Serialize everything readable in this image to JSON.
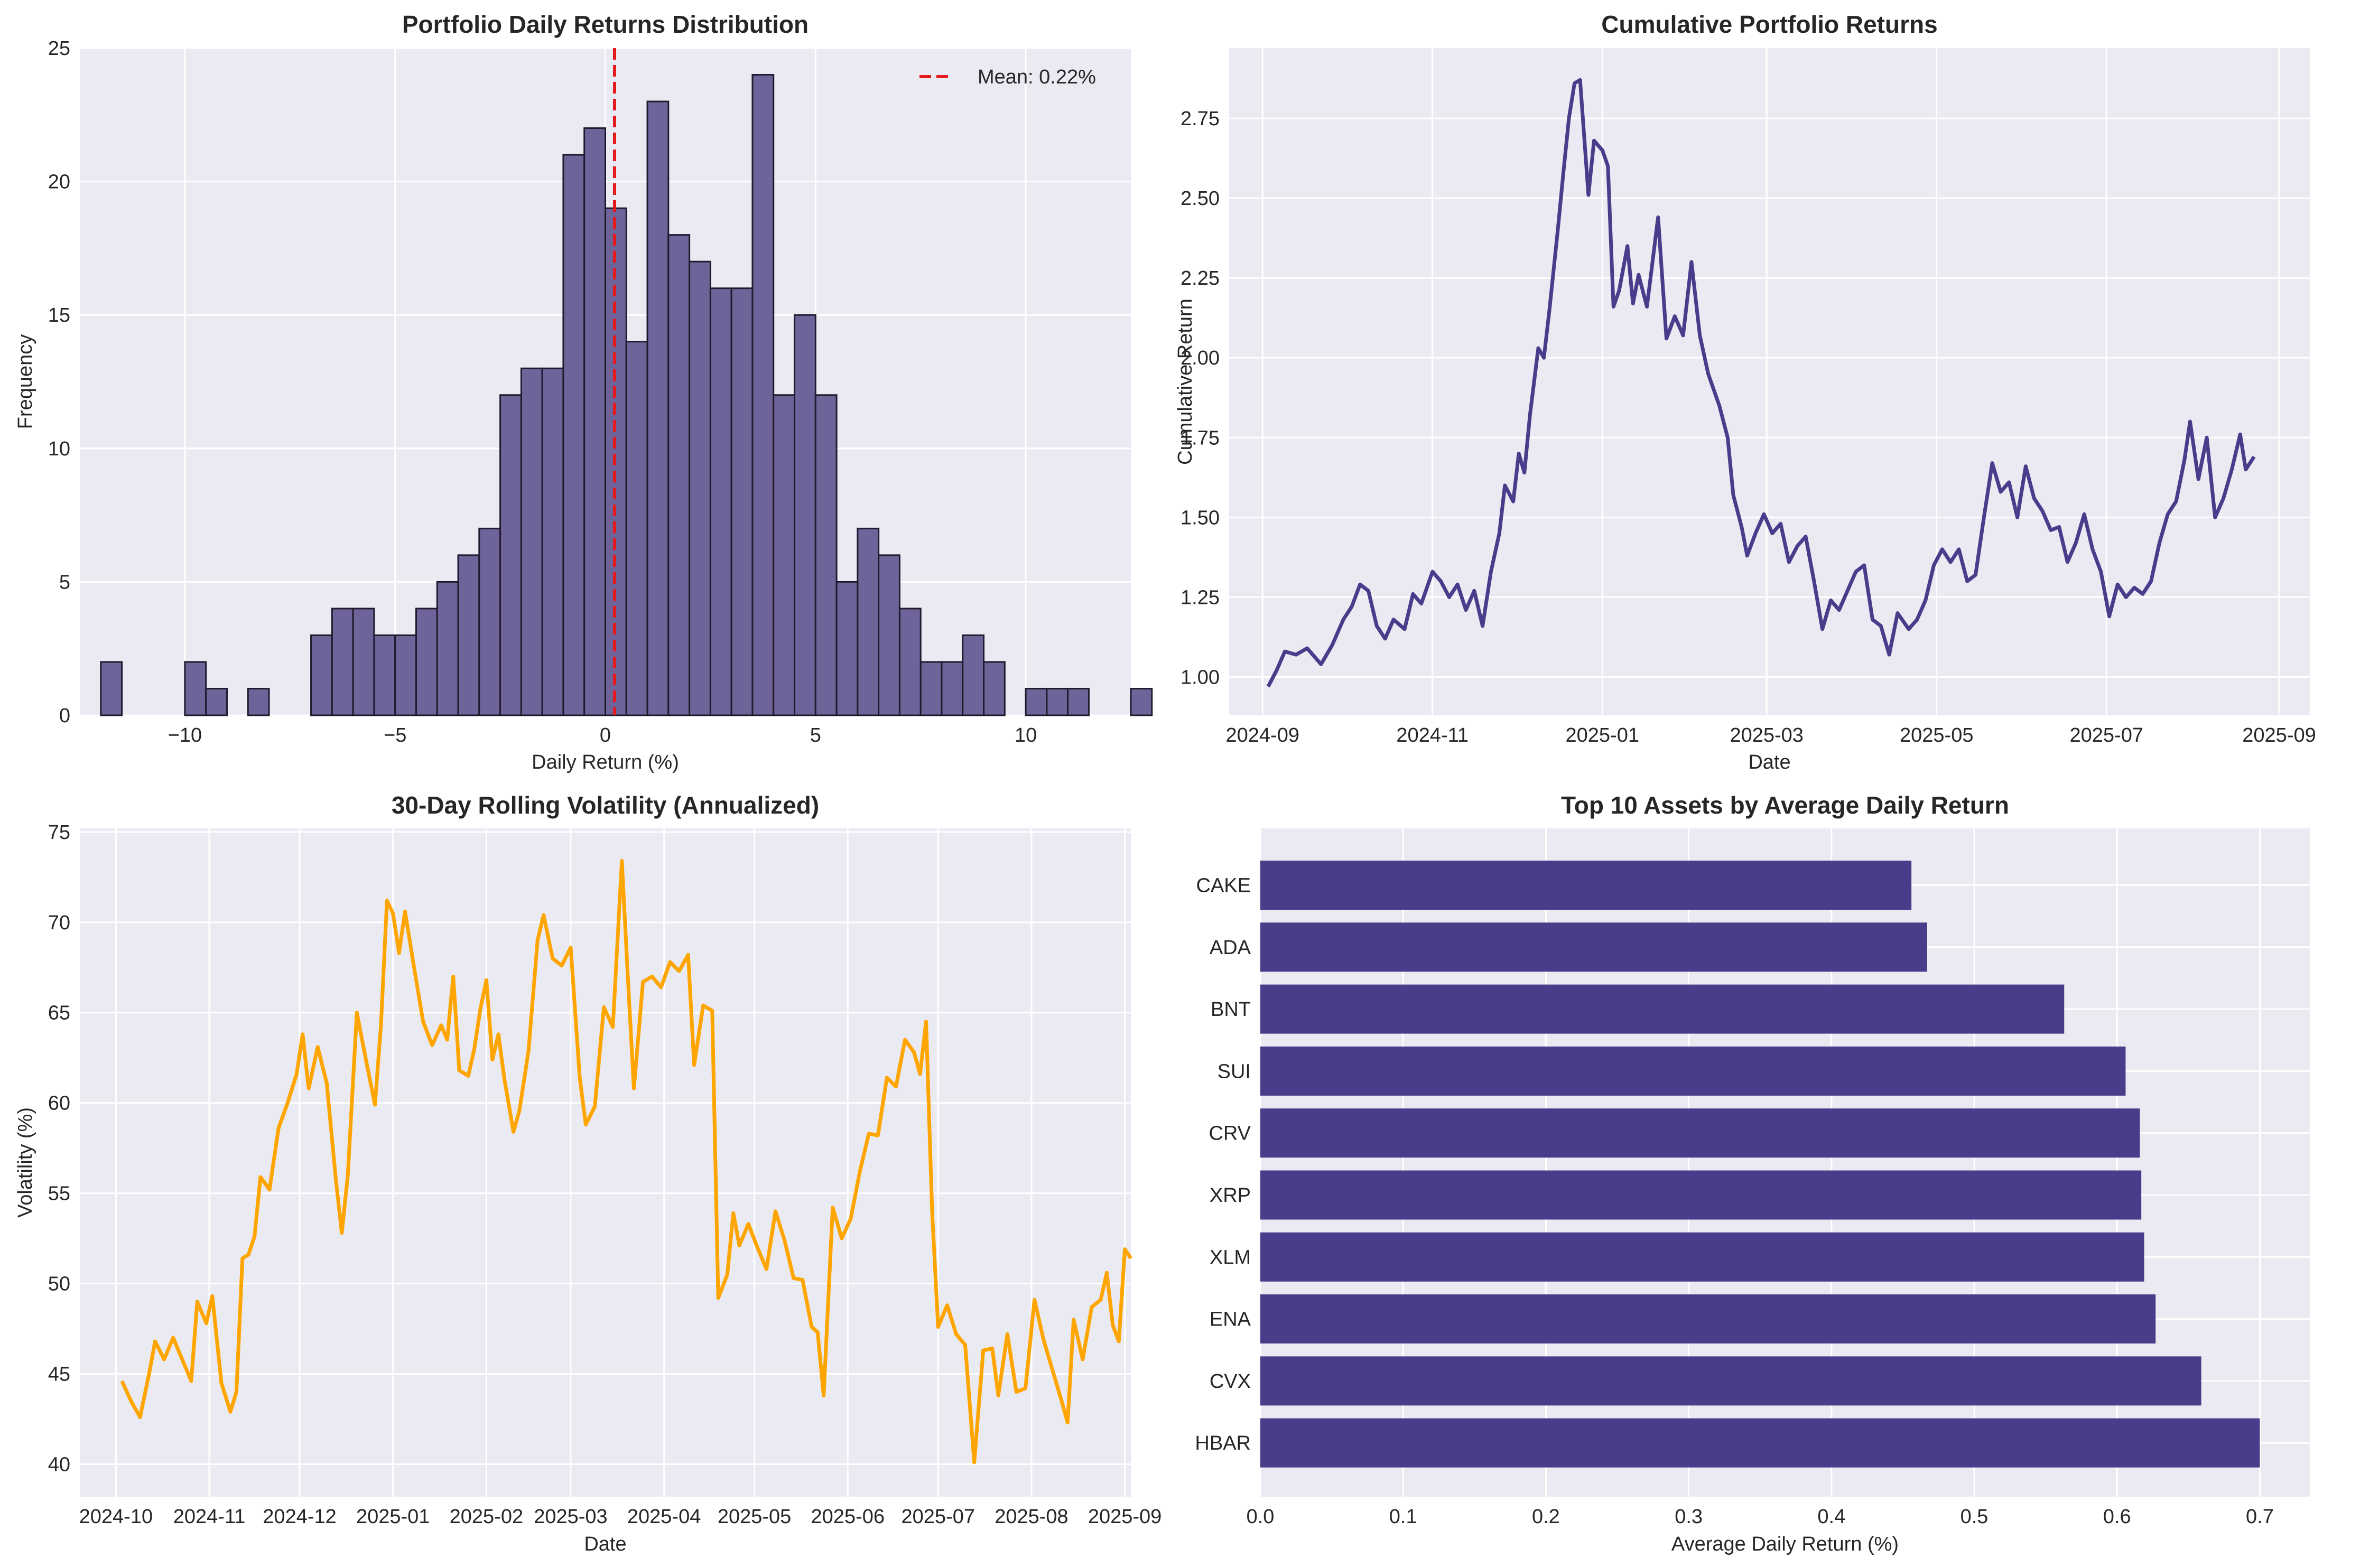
{
  "colors": {
    "plot_bg": "#EAEAF2",
    "grid": "#FFFFFF",
    "primary": "#483D8B",
    "hist_fill": "#6F6499",
    "hist_edge": "#1F1A2E",
    "mean_line": "#E41A1C",
    "volatility": "#FFA500",
    "text": "#262626"
  },
  "chart_data": [
    {
      "id": "histogram",
      "type": "bar",
      "title": "Portfolio Daily Returns Distribution",
      "xlabel": "Daily Return (%)",
      "ylabel": "Frequency",
      "xlim": [
        -12.5,
        12.5
      ],
      "ylim": [
        0,
        25
      ],
      "xticks": [
        -10,
        -5,
        0,
        5,
        10
      ],
      "yticks": [
        0,
        5,
        10,
        15,
        20,
        25
      ],
      "grid": true,
      "bin_start": -12.0,
      "bin_width": 0.5,
      "counts": [
        2,
        0,
        0,
        0,
        2,
        1,
        0,
        1,
        0,
        0,
        3,
        4,
        4,
        3,
        3,
        4,
        5,
        6,
        7,
        12,
        13,
        13,
        21,
        22,
        19,
        14,
        23,
        18,
        17,
        16,
        16,
        24,
        12,
        15,
        12,
        5,
        7,
        6,
        4,
        2,
        2,
        3,
        2,
        0,
        1,
        1,
        1,
        0,
        0,
        1
      ],
      "mean": 0.22,
      "legend": "Mean: 0.22%",
      "legend_position": "upper right"
    },
    {
      "id": "cumulative",
      "type": "line",
      "title": "Cumulative Portfolio Returns",
      "xlabel": "Date",
      "ylabel": "Cumulative Return",
      "x_range": [
        "2024-08-20",
        "2025-09-12"
      ],
      "ylim": [
        0.88,
        2.97
      ],
      "xticks": [
        "2024-09",
        "2024-11",
        "2025-01",
        "2025-03",
        "2025-05",
        "2025-07",
        "2025-09"
      ],
      "yticks": [
        1.0,
        1.25,
        1.5,
        1.75,
        2.0,
        2.25,
        2.5,
        2.75
      ],
      "grid": true,
      "points": [
        [
          "2024-09-03",
          0.97
        ],
        [
          "2024-09-06",
          1.02
        ],
        [
          "2024-09-09",
          1.08
        ],
        [
          "2024-09-13",
          1.07
        ],
        [
          "2024-09-17",
          1.09
        ],
        [
          "2024-09-22",
          1.04
        ],
        [
          "2024-09-26",
          1.1
        ],
        [
          "2024-09-30",
          1.18
        ],
        [
          "2024-10-03",
          1.22
        ],
        [
          "2024-10-06",
          1.29
        ],
        [
          "2024-10-09",
          1.27
        ],
        [
          "2024-10-12",
          1.16
        ],
        [
          "2024-10-15",
          1.12
        ],
        [
          "2024-10-18",
          1.18
        ],
        [
          "2024-10-22",
          1.15
        ],
        [
          "2024-10-25",
          1.26
        ],
        [
          "2024-10-28",
          1.23
        ],
        [
          "2024-11-01",
          1.33
        ],
        [
          "2024-11-04",
          1.3
        ],
        [
          "2024-11-07",
          1.25
        ],
        [
          "2024-11-10",
          1.29
        ],
        [
          "2024-11-13",
          1.21
        ],
        [
          "2024-11-16",
          1.27
        ],
        [
          "2024-11-19",
          1.16
        ],
        [
          "2024-11-22",
          1.33
        ],
        [
          "2024-11-25",
          1.45
        ],
        [
          "2024-11-27",
          1.6
        ],
        [
          "2024-11-30",
          1.55
        ],
        [
          "2024-12-02",
          1.7
        ],
        [
          "2024-12-04",
          1.64
        ],
        [
          "2024-12-06",
          1.82
        ],
        [
          "2024-12-09",
          2.03
        ],
        [
          "2024-12-11",
          2.0
        ],
        [
          "2024-12-13",
          2.15
        ],
        [
          "2024-12-16",
          2.4
        ],
        [
          "2024-12-18",
          2.58
        ],
        [
          "2024-12-20",
          2.75
        ],
        [
          "2024-12-22",
          2.86
        ],
        [
          "2024-12-24",
          2.87
        ],
        [
          "2024-12-27",
          2.51
        ],
        [
          "2024-12-29",
          2.68
        ],
        [
          "2025-01-01",
          2.65
        ],
        [
          "2025-01-03",
          2.6
        ],
        [
          "2025-01-05",
          2.16
        ],
        [
          "2025-01-07",
          2.21
        ],
        [
          "2025-01-10",
          2.35
        ],
        [
          "2025-01-12",
          2.17
        ],
        [
          "2025-01-14",
          2.26
        ],
        [
          "2025-01-17",
          2.16
        ],
        [
          "2025-01-21",
          2.44
        ],
        [
          "2025-01-24",
          2.06
        ],
        [
          "2025-01-27",
          2.13
        ],
        [
          "2025-01-30",
          2.07
        ],
        [
          "2025-02-02",
          2.3
        ],
        [
          "2025-02-05",
          2.07
        ],
        [
          "2025-02-08",
          1.95
        ],
        [
          "2025-02-12",
          1.85
        ],
        [
          "2025-02-15",
          1.75
        ],
        [
          "2025-02-17",
          1.57
        ],
        [
          "2025-02-20",
          1.47
        ],
        [
          "2025-02-22",
          1.38
        ],
        [
          "2025-02-25",
          1.45
        ],
        [
          "2025-02-28",
          1.51
        ],
        [
          "2025-03-03",
          1.45
        ],
        [
          "2025-03-06",
          1.48
        ],
        [
          "2025-03-09",
          1.36
        ],
        [
          "2025-03-12",
          1.41
        ],
        [
          "2025-03-15",
          1.44
        ],
        [
          "2025-03-18",
          1.3
        ],
        [
          "2025-03-21",
          1.15
        ],
        [
          "2025-03-24",
          1.24
        ],
        [
          "2025-03-27",
          1.21
        ],
        [
          "2025-03-30",
          1.27
        ],
        [
          "2025-04-02",
          1.33
        ],
        [
          "2025-04-05",
          1.35
        ],
        [
          "2025-04-08",
          1.18
        ],
        [
          "2025-04-11",
          1.16
        ],
        [
          "2025-04-14",
          1.07
        ],
        [
          "2025-04-17",
          1.2
        ],
        [
          "2025-04-21",
          1.15
        ],
        [
          "2025-04-24",
          1.18
        ],
        [
          "2025-04-27",
          1.24
        ],
        [
          "2025-04-30",
          1.35
        ],
        [
          "2025-05-03",
          1.4
        ],
        [
          "2025-05-06",
          1.36
        ],
        [
          "2025-05-09",
          1.4
        ],
        [
          "2025-05-12",
          1.3
        ],
        [
          "2025-05-15",
          1.32
        ],
        [
          "2025-05-18",
          1.5
        ],
        [
          "2025-05-21",
          1.67
        ],
        [
          "2025-05-24",
          1.58
        ],
        [
          "2025-05-27",
          1.61
        ],
        [
          "2025-05-30",
          1.5
        ],
        [
          "2025-06-02",
          1.66
        ],
        [
          "2025-06-05",
          1.56
        ],
        [
          "2025-06-08",
          1.52
        ],
        [
          "2025-06-11",
          1.46
        ],
        [
          "2025-06-14",
          1.47
        ],
        [
          "2025-06-17",
          1.36
        ],
        [
          "2025-06-20",
          1.42
        ],
        [
          "2025-06-23",
          1.51
        ],
        [
          "2025-06-26",
          1.4
        ],
        [
          "2025-06-29",
          1.33
        ],
        [
          "2025-07-02",
          1.19
        ],
        [
          "2025-07-05",
          1.29
        ],
        [
          "2025-07-08",
          1.25
        ],
        [
          "2025-07-11",
          1.28
        ],
        [
          "2025-07-14",
          1.26
        ],
        [
          "2025-07-17",
          1.3
        ],
        [
          "2025-07-20",
          1.42
        ],
        [
          "2025-07-23",
          1.51
        ],
        [
          "2025-07-26",
          1.55
        ],
        [
          "2025-07-29",
          1.68
        ],
        [
          "2025-07-31",
          1.8
        ],
        [
          "2025-08-03",
          1.62
        ],
        [
          "2025-08-06",
          1.75
        ],
        [
          "2025-08-09",
          1.5
        ],
        [
          "2025-08-12",
          1.56
        ],
        [
          "2025-08-15",
          1.65
        ],
        [
          "2025-08-18",
          1.76
        ],
        [
          "2025-08-20",
          1.65
        ],
        [
          "2025-08-23",
          1.69
        ]
      ]
    },
    {
      "id": "volatility",
      "type": "line",
      "title": "30-Day Rolling Volatility (Annualized)",
      "xlabel": "Date",
      "ylabel": "Volatility (%)",
      "x_range": [
        "2024-09-19",
        "2025-09-03"
      ],
      "ylim": [
        38.2,
        75.2
      ],
      "xticks": [
        "2024-10",
        "2024-11",
        "2024-12",
        "2025-01",
        "2025-02",
        "2025-03",
        "2025-04",
        "2025-05",
        "2025-06",
        "2025-07",
        "2025-08",
        "2025-09"
      ],
      "yticks": [
        40,
        45,
        50,
        55,
        60,
        65,
        70,
        75
      ],
      "grid": true,
      "points": [
        [
          "2024-10-03",
          44.6
        ],
        [
          "2024-10-06",
          43.5
        ],
        [
          "2024-10-09",
          42.6
        ],
        [
          "2024-10-12",
          45.0
        ],
        [
          "2024-10-14",
          46.8
        ],
        [
          "2024-10-17",
          45.8
        ],
        [
          "2024-10-20",
          47.0
        ],
        [
          "2024-10-23",
          45.8
        ],
        [
          "2024-10-26",
          44.6
        ],
        [
          "2024-10-28",
          49.0
        ],
        [
          "2024-10-31",
          47.8
        ],
        [
          "2024-11-02",
          49.3
        ],
        [
          "2024-11-05",
          44.5
        ],
        [
          "2024-11-08",
          42.9
        ],
        [
          "2024-11-10",
          44.0
        ],
        [
          "2024-11-12",
          51.4
        ],
        [
          "2024-11-14",
          51.6
        ],
        [
          "2024-11-16",
          52.6
        ],
        [
          "2024-11-18",
          55.9
        ],
        [
          "2024-11-21",
          55.2
        ],
        [
          "2024-11-24",
          58.6
        ],
        [
          "2024-11-27",
          60.0
        ],
        [
          "2024-11-30",
          61.6
        ],
        [
          "2024-12-02",
          63.8
        ],
        [
          "2024-12-04",
          60.8
        ],
        [
          "2024-12-07",
          63.1
        ],
        [
          "2024-12-10",
          61.1
        ],
        [
          "2024-12-13",
          55.8
        ],
        [
          "2024-12-15",
          52.8
        ],
        [
          "2024-12-17",
          56.0
        ],
        [
          "2024-12-20",
          65.0
        ],
        [
          "2024-12-23",
          62.4
        ],
        [
          "2024-12-26",
          59.9
        ],
        [
          "2024-12-28",
          64.3
        ],
        [
          "2024-12-30",
          71.2
        ],
        [
          "2025-01-01",
          70.5
        ],
        [
          "2025-01-03",
          68.3
        ],
        [
          "2025-01-05",
          70.6
        ],
        [
          "2025-01-08",
          67.5
        ],
        [
          "2025-01-11",
          64.5
        ],
        [
          "2025-01-14",
          63.2
        ],
        [
          "2025-01-17",
          64.3
        ],
        [
          "2025-01-19",
          63.5
        ],
        [
          "2025-01-21",
          67.0
        ],
        [
          "2025-01-23",
          61.8
        ],
        [
          "2025-01-26",
          61.5
        ],
        [
          "2025-01-28",
          63.0
        ],
        [
          "2025-01-30",
          65.2
        ],
        [
          "2025-02-01",
          66.8
        ],
        [
          "2025-02-03",
          62.4
        ],
        [
          "2025-02-05",
          63.8
        ],
        [
          "2025-02-07",
          61.3
        ],
        [
          "2025-02-10",
          58.4
        ],
        [
          "2025-02-12",
          59.6
        ],
        [
          "2025-02-15",
          62.9
        ],
        [
          "2025-02-18",
          69.0
        ],
        [
          "2025-02-20",
          70.4
        ],
        [
          "2025-02-23",
          68.0
        ],
        [
          "2025-02-26",
          67.6
        ],
        [
          "2025-03-01",
          68.6
        ],
        [
          "2025-03-04",
          61.4
        ],
        [
          "2025-03-06",
          58.8
        ],
        [
          "2025-03-09",
          59.8
        ],
        [
          "2025-03-12",
          65.3
        ],
        [
          "2025-03-15",
          64.2
        ],
        [
          "2025-03-18",
          73.4
        ],
        [
          "2025-03-20",
          66.9
        ],
        [
          "2025-03-22",
          60.8
        ],
        [
          "2025-03-25",
          66.7
        ],
        [
          "2025-03-28",
          67.0
        ],
        [
          "2025-03-31",
          66.4
        ],
        [
          "2025-04-03",
          67.8
        ],
        [
          "2025-04-06",
          67.3
        ],
        [
          "2025-04-09",
          68.2
        ],
        [
          "2025-04-11",
          62.1
        ],
        [
          "2025-04-14",
          65.4
        ],
        [
          "2025-04-17",
          65.1
        ],
        [
          "2025-04-19",
          49.2
        ],
        [
          "2025-04-22",
          50.5
        ],
        [
          "2025-04-24",
          53.9
        ],
        [
          "2025-04-26",
          52.1
        ],
        [
          "2025-04-29",
          53.3
        ],
        [
          "2025-05-02",
          52.0
        ],
        [
          "2025-05-05",
          50.8
        ],
        [
          "2025-05-08",
          54.0
        ],
        [
          "2025-05-11",
          52.4
        ],
        [
          "2025-05-14",
          50.3
        ],
        [
          "2025-05-17",
          50.2
        ],
        [
          "2025-05-20",
          47.6
        ],
        [
          "2025-05-22",
          47.3
        ],
        [
          "2025-05-24",
          43.8
        ],
        [
          "2025-05-27",
          54.2
        ],
        [
          "2025-05-30",
          52.5
        ],
        [
          "2025-06-02",
          53.6
        ],
        [
          "2025-06-05",
          56.2
        ],
        [
          "2025-06-08",
          58.3
        ],
        [
          "2025-06-11",
          58.2
        ],
        [
          "2025-06-14",
          61.4
        ],
        [
          "2025-06-17",
          60.9
        ],
        [
          "2025-06-20",
          63.5
        ],
        [
          "2025-06-23",
          62.8
        ],
        [
          "2025-06-25",
          61.6
        ],
        [
          "2025-06-27",
          64.5
        ],
        [
          "2025-06-29",
          54.0
        ],
        [
          "2025-07-01",
          47.6
        ],
        [
          "2025-07-04",
          48.8
        ],
        [
          "2025-07-07",
          47.2
        ],
        [
          "2025-07-10",
          46.6
        ],
        [
          "2025-07-13",
          40.1
        ],
        [
          "2025-07-16",
          46.3
        ],
        [
          "2025-07-19",
          46.4
        ],
        [
          "2025-07-21",
          43.8
        ],
        [
          "2025-07-24",
          47.2
        ],
        [
          "2025-07-27",
          44.0
        ],
        [
          "2025-07-30",
          44.2
        ],
        [
          "2025-08-02",
          49.1
        ],
        [
          "2025-08-05",
          46.9
        ],
        [
          "2025-08-08",
          45.2
        ],
        [
          "2025-08-11",
          43.5
        ],
        [
          "2025-08-13",
          42.3
        ],
        [
          "2025-08-15",
          48.0
        ],
        [
          "2025-08-18",
          45.8
        ],
        [
          "2025-08-21",
          48.7
        ],
        [
          "2025-08-24",
          49.1
        ],
        [
          "2025-08-26",
          50.6
        ],
        [
          "2025-08-28",
          47.7
        ],
        [
          "2025-08-30",
          46.8
        ],
        [
          "2025-09-01",
          51.9
        ],
        [
          "2025-09-03",
          51.4
        ]
      ]
    },
    {
      "id": "top_assets",
      "type": "bar",
      "orientation": "horizontal",
      "title": "Top 10 Assets by Average Daily Return",
      "xlabel": "Average Daily Return (%)",
      "ylabel": "",
      "xlim": [
        0,
        0.735
      ],
      "xticks": [
        0.0,
        0.1,
        0.2,
        0.3,
        0.4,
        0.5,
        0.6,
        0.7
      ],
      "grid": true,
      "categories": [
        "CAKE",
        "ADA",
        "BNT",
        "SUI",
        "CRV",
        "XRP",
        "XLM",
        "ENA",
        "CVX",
        "HBAR"
      ],
      "values": [
        0.456,
        0.467,
        0.563,
        0.606,
        0.616,
        0.617,
        0.619,
        0.627,
        0.659,
        0.7
      ]
    }
  ]
}
